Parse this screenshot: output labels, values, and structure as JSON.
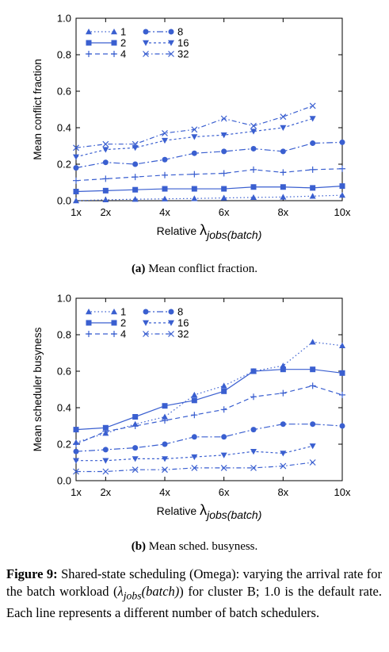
{
  "colors": {
    "series": "#3a5fd0",
    "axis": "#000000"
  },
  "subcaptions": [
    {
      "tag": "(a)",
      "text": "Mean conflict fraction."
    },
    {
      "tag": "(b)",
      "text": "Mean sched. busyness."
    }
  ],
  "caption": {
    "label": "Figure 9:",
    "text_1": "Shared-state scheduling (Omega): varying the arrival rate for the batch workload (",
    "lambda": "λ",
    "sub": "jobs",
    "paren": "(batch)",
    "text_2": ") for cluster B; 1.0 is the default rate. Each line represents a different number of batch schedulers."
  },
  "chart_data": [
    {
      "type": "line",
      "ylabel": "Mean conflict fraction",
      "xlabel": {
        "prefix": "Relative ",
        "lambda": "λ",
        "sub": "jobs",
        "suffix": "(batch)"
      },
      "xlim": [
        1,
        10
      ],
      "ylim": [
        0,
        1.0
      ],
      "xticks": [
        1,
        2,
        4,
        6,
        8,
        10
      ],
      "xtick_labels": [
        "1x",
        "2x",
        "4x",
        "6x",
        "8x",
        "10x"
      ],
      "yticks": [
        0,
        0.2,
        0.4,
        0.6,
        0.8,
        1.0
      ],
      "ytick_labels": [
        "0.0",
        "0.2",
        "0.4",
        "0.6",
        "0.8",
        "1.0"
      ],
      "grid": false,
      "legend_position": "top-left",
      "x": [
        1,
        2,
        3,
        4,
        5,
        6,
        7,
        8,
        9,
        10
      ],
      "series": [
        {
          "name": "1",
          "marker": "triangle-up",
          "dash": "1.5,3",
          "values": [
            0.0,
            0.005,
            0.008,
            0.01,
            0.012,
            0.015,
            0.018,
            0.02,
            0.025,
            0.03
          ]
        },
        {
          "name": "2",
          "marker": "square",
          "dash": "",
          "values": [
            0.05,
            0.055,
            0.06,
            0.065,
            0.065,
            0.065,
            0.075,
            0.075,
            0.07,
            0.08
          ]
        },
        {
          "name": "4",
          "marker": "plus",
          "dash": "6,4",
          "values": [
            0.11,
            0.12,
            0.13,
            0.14,
            0.145,
            0.15,
            0.17,
            0.155,
            0.17,
            0.175
          ]
        },
        {
          "name": "8",
          "marker": "circle",
          "dash": "8,3,2,3",
          "values": [
            0.18,
            0.21,
            0.2,
            0.225,
            0.26,
            0.27,
            0.285,
            0.27,
            0.315,
            0.32
          ]
        },
        {
          "name": "16",
          "marker": "triangle-down",
          "dash": "3,3",
          "values": [
            0.24,
            0.28,
            0.29,
            0.33,
            0.35,
            0.36,
            0.38,
            0.4,
            0.45,
            null
          ]
        },
        {
          "name": "32",
          "marker": "cross",
          "dash": "6,3,1.5,3",
          "values": [
            0.29,
            0.31,
            0.31,
            0.37,
            0.39,
            0.45,
            0.41,
            0.46,
            0.52,
            null
          ]
        }
      ]
    },
    {
      "type": "line",
      "ylabel": "Mean scheduler busyness",
      "xlabel": {
        "prefix": "Relative ",
        "lambda": "λ",
        "sub": "jobs",
        "suffix": "(batch)"
      },
      "xlim": [
        1,
        10
      ],
      "ylim": [
        0,
        1.0
      ],
      "xticks": [
        1,
        2,
        4,
        6,
        8,
        10
      ],
      "xtick_labels": [
        "1x",
        "2x",
        "4x",
        "6x",
        "8x",
        "10x"
      ],
      "yticks": [
        0,
        0.2,
        0.4,
        0.6,
        0.8,
        1.0
      ],
      "ytick_labels": [
        "0.0",
        "0.2",
        "0.4",
        "0.6",
        "0.8",
        "1.0"
      ],
      "grid": false,
      "legend_position": "top-left",
      "x": [
        1,
        2,
        3,
        4,
        5,
        6,
        7,
        8,
        9,
        10
      ],
      "series": [
        {
          "name": "1",
          "marker": "triangle-up",
          "dash": "1.5,3",
          "values": [
            0.21,
            0.26,
            0.31,
            0.35,
            0.47,
            0.52,
            0.6,
            0.63,
            0.76,
            0.74
          ]
        },
        {
          "name": "2",
          "marker": "square",
          "dash": "",
          "values": [
            0.28,
            0.29,
            0.35,
            0.41,
            0.44,
            0.49,
            0.6,
            0.61,
            0.61,
            0.59
          ]
        },
        {
          "name": "4",
          "marker": "plus",
          "dash": "6,4",
          "values": [
            0.2,
            0.27,
            0.3,
            0.33,
            0.36,
            0.39,
            0.46,
            0.48,
            0.52,
            0.47
          ]
        },
        {
          "name": "8",
          "marker": "circle",
          "dash": "8,3,2,3",
          "values": [
            0.16,
            0.17,
            0.18,
            0.2,
            0.24,
            0.24,
            0.28,
            0.31,
            0.31,
            0.3
          ]
        },
        {
          "name": "16",
          "marker": "triangle-down",
          "dash": "3,3",
          "values": [
            0.11,
            0.11,
            0.12,
            0.12,
            0.13,
            0.14,
            0.16,
            0.15,
            0.19,
            null
          ]
        },
        {
          "name": "32",
          "marker": "cross",
          "dash": "6,3,1.5,3",
          "values": [
            0.05,
            0.05,
            0.06,
            0.06,
            0.07,
            0.07,
            0.07,
            0.08,
            0.1,
            null
          ]
        }
      ]
    }
  ]
}
